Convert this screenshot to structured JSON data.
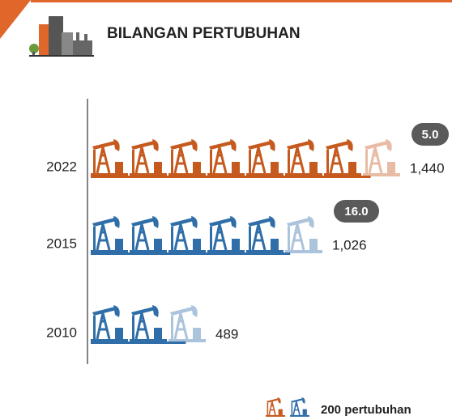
{
  "chart_data": {
    "type": "pictogram",
    "title": "BILANGAN PERTUBUHAN",
    "categories": [
      "2022",
      "2015",
      "2010"
    ],
    "values": [
      1440,
      1026,
      489
    ],
    "value_labels": [
      "1,440",
      "1,026",
      "489"
    ],
    "colors": [
      "#c65a1e",
      "#2f6ea8",
      "#2f6ea8"
    ],
    "badges": [
      {
        "value": 5,
        "label": "5.0"
      },
      {
        "value": 16,
        "label": "16.0"
      },
      null
    ],
    "icon_unit": {
      "value": 200,
      "label": "200 pertubuhan"
    },
    "legend_colors": [
      "#c65a1e",
      "#2f6ea8"
    ]
  }
}
